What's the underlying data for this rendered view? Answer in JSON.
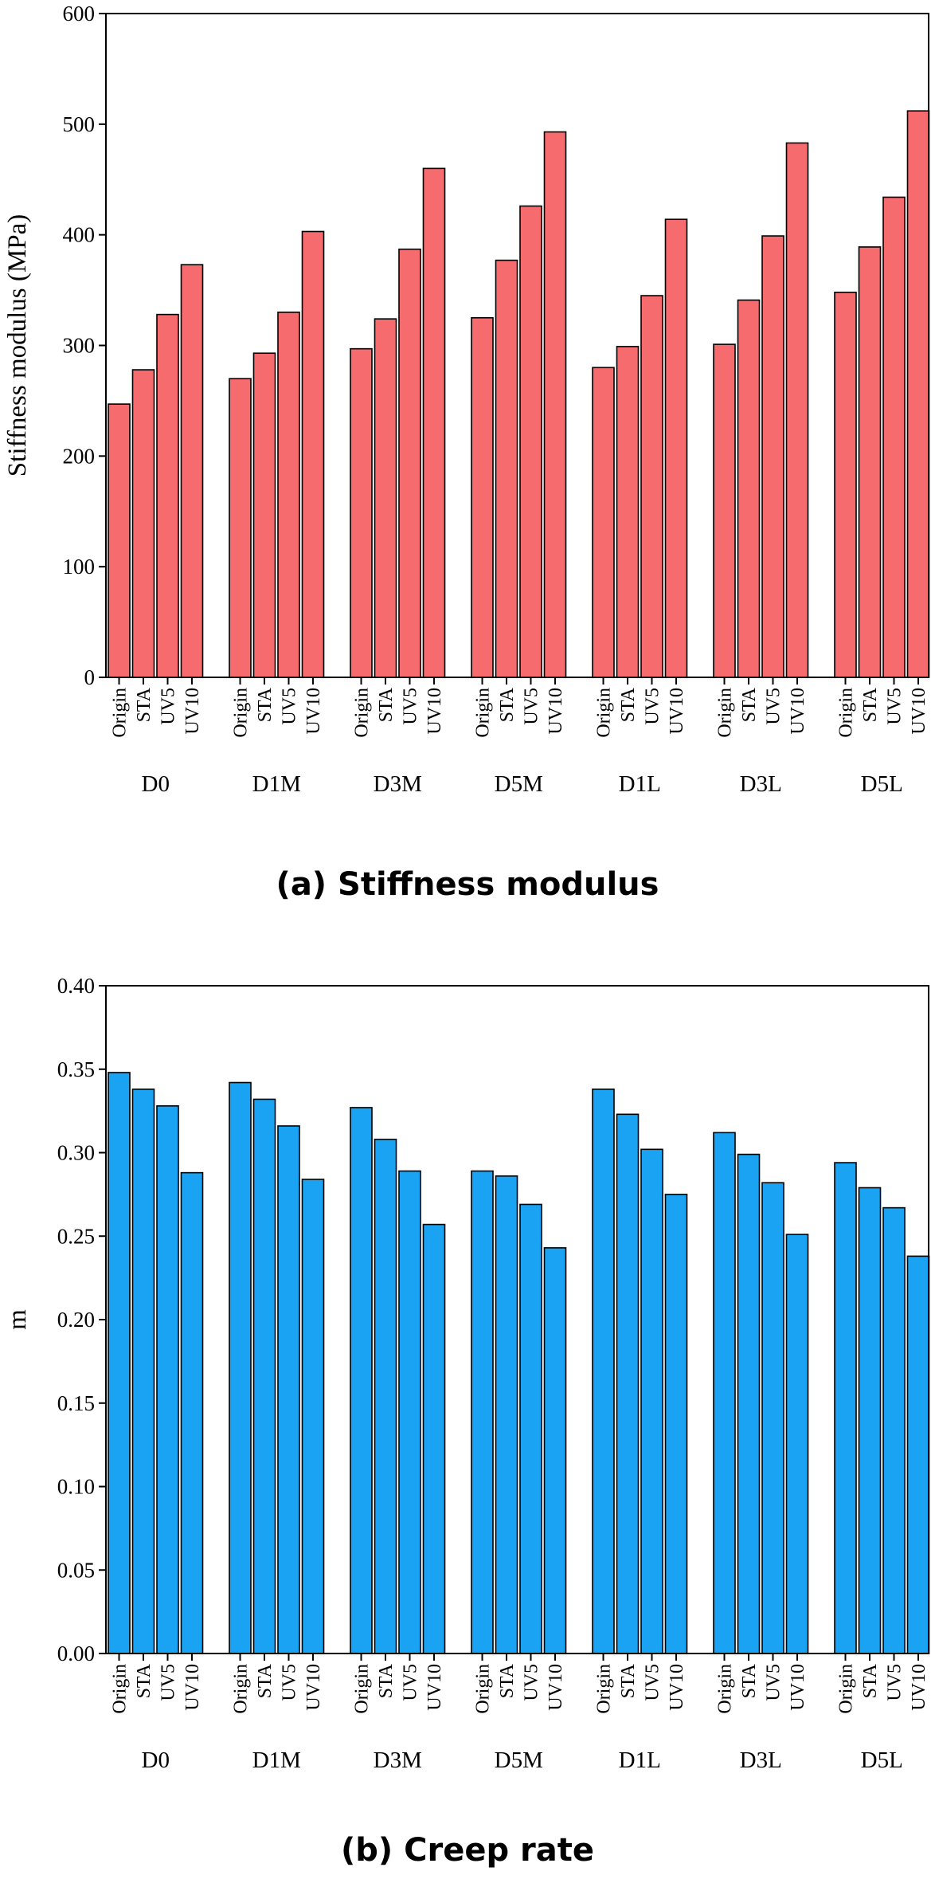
{
  "chart_data": [
    {
      "type": "bar",
      "caption": "(a) Stiffness modulus",
      "ylabel": "Stiffness modulus (MPa)",
      "xlabel": "",
      "ylim": [
        0,
        600
      ],
      "yticks": [
        0,
        100,
        200,
        300,
        400,
        500,
        600
      ],
      "yticklabels": [
        "0",
        "100",
        "200",
        "300",
        "400",
        "500",
        "600"
      ],
      "groups": [
        "D0",
        "D1M",
        "D3M",
        "D5M",
        "D1L",
        "D3L",
        "D5L"
      ],
      "categories": [
        "Origin",
        "STA",
        "UV5",
        "UV10"
      ],
      "color": "#F56B6E",
      "values": [
        [
          247,
          278,
          328,
          373
        ],
        [
          270,
          293,
          330,
          403
        ],
        [
          297,
          324,
          387,
          460
        ],
        [
          325,
          377,
          426,
          493
        ],
        [
          280,
          299,
          345,
          414
        ],
        [
          301,
          341,
          399,
          483
        ],
        [
          348,
          389,
          434,
          512
        ]
      ]
    },
    {
      "type": "bar",
      "caption": "(b) Creep rate",
      "ylabel": "m",
      "xlabel": "",
      "ylim": [
        0,
        0.4
      ],
      "yticks": [
        0,
        0.05,
        0.1,
        0.15,
        0.2,
        0.25,
        0.3,
        0.35,
        0.4
      ],
      "yticklabels": [
        "0.00",
        "0.05",
        "0.10",
        "0.15",
        "0.20",
        "0.25",
        "0.30",
        "0.35",
        "0.40"
      ],
      "groups": [
        "D0",
        "D1M",
        "D3M",
        "D5M",
        "D1L",
        "D3L",
        "D5L"
      ],
      "categories": [
        "Origin",
        "STA",
        "UV5",
        "UV10"
      ],
      "color": "#1AA3F2",
      "values": [
        [
          0.348,
          0.338,
          0.328,
          0.288
        ],
        [
          0.342,
          0.332,
          0.316,
          0.284
        ],
        [
          0.327,
          0.308,
          0.289,
          0.257
        ],
        [
          0.289,
          0.286,
          0.269,
          0.243
        ],
        [
          0.338,
          0.323,
          0.302,
          0.275
        ],
        [
          0.312,
          0.299,
          0.282,
          0.251
        ],
        [
          0.294,
          0.279,
          0.267,
          0.238
        ]
      ]
    }
  ]
}
